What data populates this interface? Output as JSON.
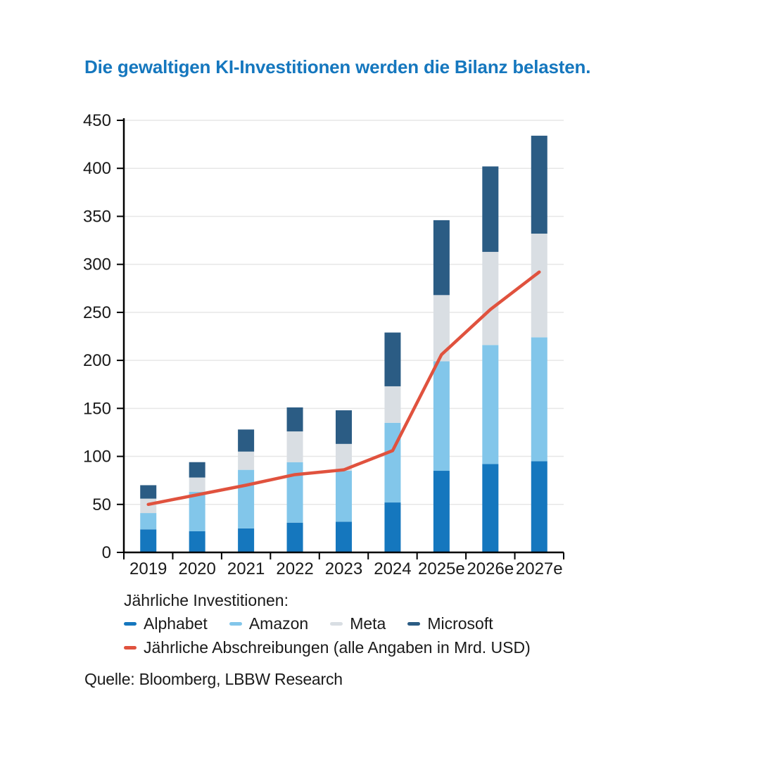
{
  "page": {
    "title": "Die gewaltigen KI-Investitionen werden die Bilanz belasten.",
    "source": "Quelle: Bloomberg, LBBW Research"
  },
  "colors": {
    "title": "#1577BE",
    "axis": "#000000",
    "gridline": "#E7E7E7",
    "tick_text": "#1A1A1A",
    "alphabet": "#1577BE",
    "amazon": "#82C6EA",
    "meta": "#D9DEE3",
    "microsoft": "#2B5C84",
    "depreciation_line": "#E0523E"
  },
  "legend": {
    "heading": "Jährliche Investitionen:",
    "items": [
      {
        "label": "Alphabet",
        "color": "#1577BE"
      },
      {
        "label": "Amazon",
        "color": "#82C6EA"
      },
      {
        "label": "Meta",
        "color": "#D9DEE3"
      },
      {
        "label": "Microsoft",
        "color": "#2B5C84"
      }
    ],
    "line_item": {
      "label": "Jährliche Abschreibungen (alle Angaben in Mrd. USD)",
      "color": "#E0523E"
    }
  },
  "chart_data": {
    "type": "bar",
    "stacked": true,
    "title": "Die gewaltigen KI-Investitionen werden die Bilanz belasten.",
    "unit": "Mrd. USD",
    "categories": [
      "2019",
      "2020",
      "2021",
      "2022",
      "2023",
      "2024",
      "2025e",
      "2026e",
      "2027e"
    ],
    "series": [
      {
        "name": "Alphabet",
        "color": "#1577BE",
        "values": [
          24,
          22,
          25,
          31,
          32,
          52,
          85,
          92,
          95
        ]
      },
      {
        "name": "Amazon",
        "color": "#82C6EA",
        "values": [
          17,
          41,
          61,
          63,
          53,
          83,
          114,
          124,
          129
        ]
      },
      {
        "name": "Meta",
        "color": "#D9DEE3",
        "values": [
          15,
          15,
          19,
          32,
          28,
          38,
          69,
          97,
          108
        ]
      },
      {
        "name": "Microsoft",
        "color": "#2B5C84",
        "values": [
          14,
          16,
          23,
          25,
          35,
          56,
          78,
          89,
          102
        ]
      }
    ],
    "stack_totals": [
      70,
      94,
      128,
      151,
      148,
      229,
      346,
      402,
      434
    ],
    "line_series": {
      "name": "Jährliche Abschreibungen",
      "color": "#E0523E",
      "values": [
        50,
        60,
        70,
        81,
        86,
        106,
        206,
        253,
        292
      ]
    },
    "ylim": [
      0,
      450
    ],
    "ytick_step": 50,
    "yticks": [
      0,
      50,
      100,
      150,
      200,
      250,
      300,
      350,
      400,
      450
    ],
    "grid": true,
    "legend_position": "bottom"
  }
}
